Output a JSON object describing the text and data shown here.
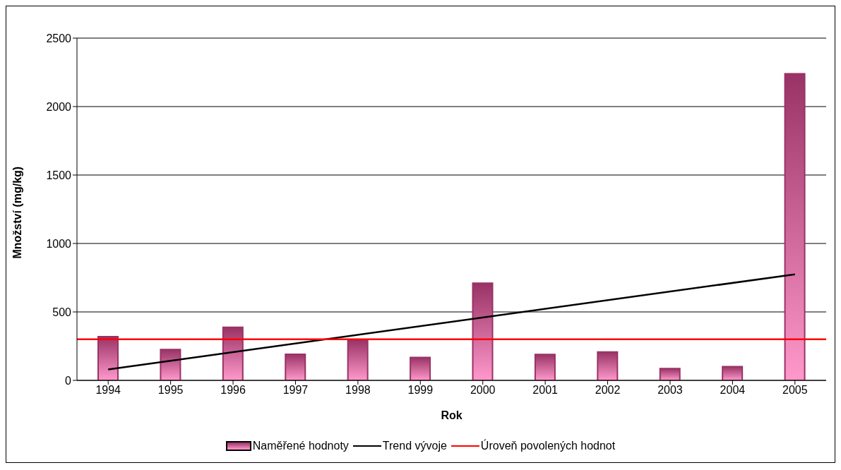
{
  "chart_data": {
    "type": "bar",
    "xlabel": "Rok",
    "ylabel": "Množství (mg/kg)",
    "categories": [
      "1994",
      "1995",
      "1996",
      "1997",
      "1998",
      "1999",
      "2000",
      "2001",
      "2002",
      "2003",
      "2004",
      "2005"
    ],
    "series": [
      {
        "name": "Naměřené hodnoty",
        "color": "#993366",
        "values": [
          320,
          226,
          388,
          191,
          295,
          167,
          710,
          190,
          207,
          86,
          100,
          2240
        ]
      },
      {
        "name": "Trend vývoje",
        "type": "line",
        "color": "#000000",
        "values": [
          80,
          null,
          null,
          null,
          null,
          null,
          null,
          null,
          null,
          null,
          null,
          775
        ]
      }
    ],
    "ref_lines": [
      {
        "axis": "y",
        "value": 300,
        "label": "Úroveň povolených hodnot",
        "color": "#ff0000"
      }
    ],
    "ylim": [
      0,
      2500
    ],
    "yticks": [
      0,
      500,
      1000,
      1500,
      2000,
      2500
    ],
    "grid": "y",
    "legend": "bottom",
    "marker": "none"
  }
}
